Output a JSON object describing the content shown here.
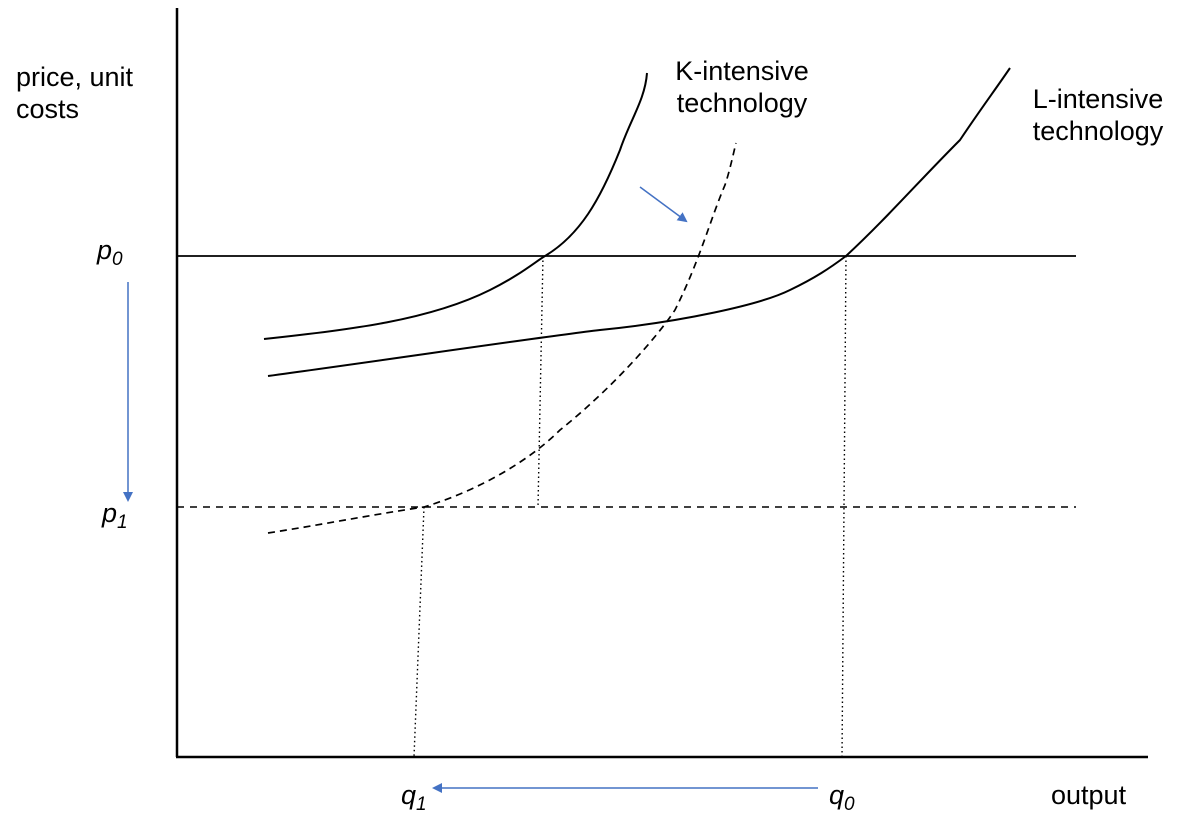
{
  "axes": {
    "y_label_line1": "price, unit",
    "y_label_line2": "costs",
    "x_label": "output"
  },
  "price_levels": {
    "p0": {
      "symbol": "p",
      "subscript": "0"
    },
    "p1": {
      "symbol": "p",
      "subscript": "1"
    }
  },
  "quantity_levels": {
    "q0": {
      "symbol": "q",
      "subscript": "0"
    },
    "q1": {
      "symbol": "q",
      "subscript": "1"
    }
  },
  "curves": {
    "k_intensive_line1": "K-intensive",
    "k_intensive_line2": "technology",
    "l_intensive_line1": "L-intensive",
    "l_intensive_line2": "technology"
  },
  "colors": {
    "ink": "#000000",
    "arrow": "#4472C4"
  }
}
